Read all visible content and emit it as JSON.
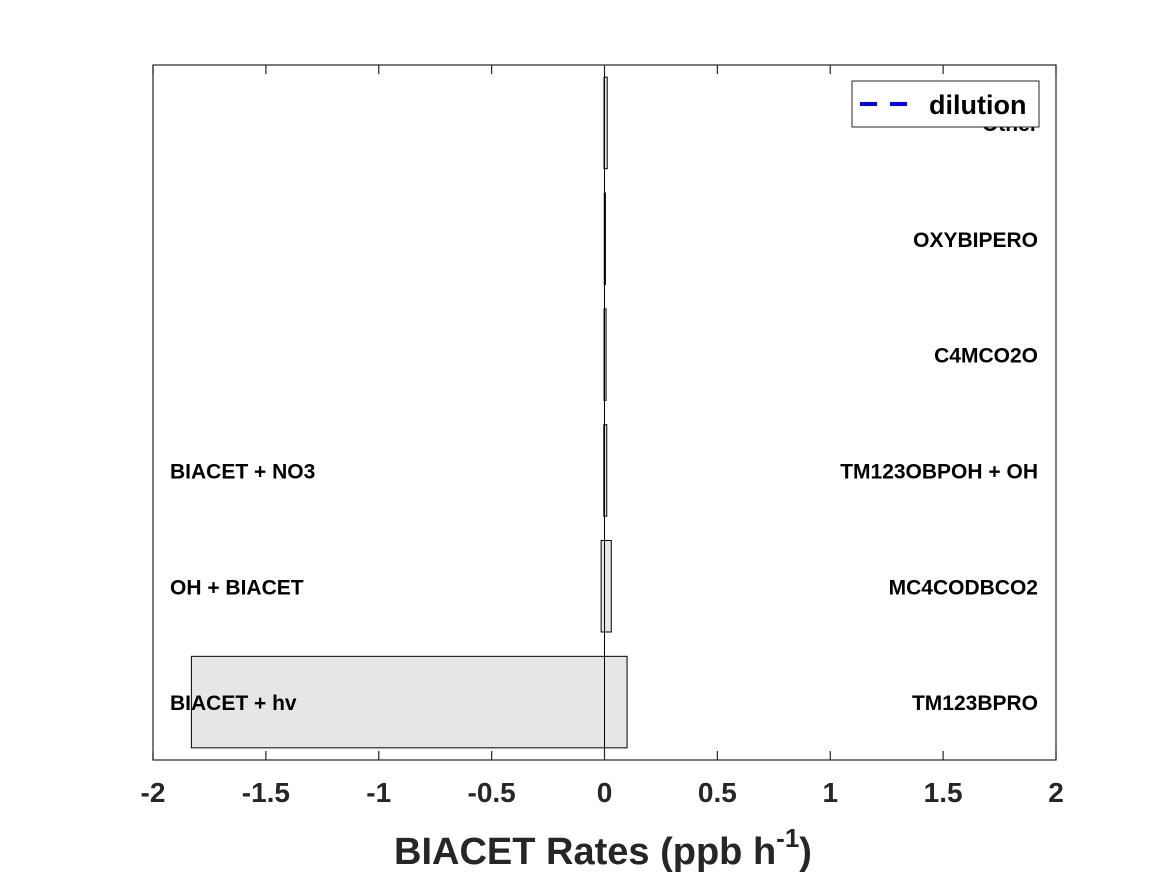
{
  "chart_data": {
    "type": "bar",
    "orientation": "horizontal",
    "xlabel": {
      "text": "BIACET Rates (ppb h",
      "superscript": "-1",
      "suffix": ")"
    },
    "xlim": [
      -2,
      2
    ],
    "xticks": [
      "-2",
      "-1.5",
      "-1",
      "-0.5",
      "0",
      "0.5",
      "1",
      "1.5",
      "2"
    ],
    "xtick_values": [
      -2,
      -1.5,
      -1,
      -0.5,
      0,
      0.5,
      1,
      1.5,
      2
    ],
    "grid": false,
    "bar_color": "#e6e6e6",
    "legend": {
      "placement": "top-right",
      "entries": [
        {
          "name": "dilution",
          "style": "dashed-line",
          "color": "#0000ff"
        }
      ]
    },
    "loss_labels": [
      "BIACET + hv",
      "OH + BIACET",
      "BIACET + NO3",
      "",
      "",
      ""
    ],
    "production_labels": [
      "TM123BPRO",
      "MC4CODBCO2",
      "TM123OBPOH + OH",
      "C4MCO2O",
      "OXYBIPERO",
      "Other"
    ],
    "bars": [
      {
        "positive": 0.1,
        "negative": -1.83
      },
      {
        "positive": 0.03,
        "negative": -0.015
      },
      {
        "positive": 0.01,
        "negative": -0.003
      },
      {
        "positive": 0.007,
        "negative": -0.002
      },
      {
        "positive": 0.004,
        "negative": -0.001
      },
      {
        "positive": 0.012,
        "negative": -0.002
      }
    ]
  }
}
